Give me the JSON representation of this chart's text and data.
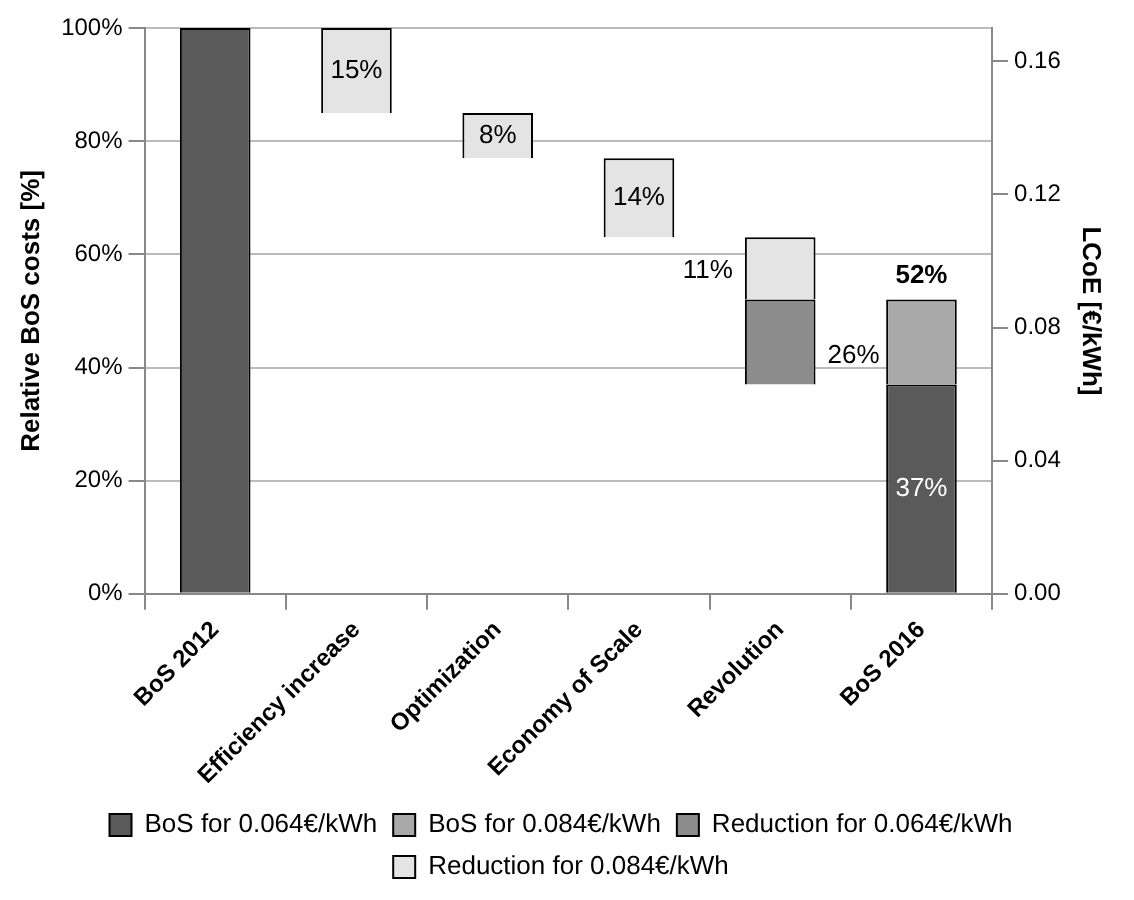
{
  "chart_data": {
    "type": "bar",
    "categories": [
      "BoS 2012",
      "Efficiency increase",
      "Optimization",
      "Economy of Scale",
      "Revolution",
      "BoS 2016"
    ],
    "ylabel": "Relative BoS costs [%]",
    "y2label": "LCoE [€/kWh]",
    "series": [
      {
        "name": "BoS for 0.064€/kWh",
        "color": "#5a5a5a",
        "values": [
          100,
          null,
          null,
          null,
          null,
          37
        ],
        "base": [
          0,
          null,
          null,
          null,
          null,
          0
        ],
        "value_labels": [
          null,
          null,
          null,
          null,
          null,
          "37%"
        ]
      },
      {
        "name": "BoS for 0.084€/kWh",
        "color": "#a9a9a9",
        "values": [
          null,
          null,
          null,
          null,
          null,
          15
        ],
        "base": [
          null,
          null,
          null,
          null,
          null,
          37
        ]
      },
      {
        "name": "Reduction for 0.064€/kWh",
        "color": "#8c8c8c",
        "values": [
          null,
          null,
          null,
          null,
          15,
          null
        ],
        "base": [
          null,
          null,
          null,
          null,
          37,
          null
        ]
      },
      {
        "name": "Reduction for 0.084€/kWh",
        "color": "#e4e4e4",
        "values": [
          null,
          15,
          8,
          14,
          11,
          null
        ],
        "base": [
          null,
          85,
          77,
          63,
          52,
          null
        ],
        "value_labels": [
          null,
          "15%",
          "8%",
          "14%",
          null,
          null
        ]
      }
    ],
    "totals": [
      null,
      null,
      null,
      null,
      null,
      "52%"
    ],
    "annotations": [
      {
        "text": "11%",
        "x": "Revolution",
        "y": 52
      },
      {
        "text": "26%",
        "x": "Revolution",
        "y": 37
      }
    ],
    "ylim": [
      0,
      100
    ],
    "yticks": [
      {
        "value": 0,
        "label": "0%"
      },
      {
        "value": 20,
        "label": "20%"
      },
      {
        "value": 40,
        "label": "40%"
      },
      {
        "value": 60,
        "label": "60%"
      },
      {
        "value": 80,
        "label": "80%"
      },
      {
        "value": 100,
        "label": "100%"
      }
    ],
    "y2lim": [
      0,
      0.17
    ],
    "y2ticks": [
      {
        "value": 0,
        "label": "0.00"
      },
      0.04,
      0.08,
      0.12,
      0.16
    ],
    "grid": "y",
    "legend": "bottom"
  }
}
